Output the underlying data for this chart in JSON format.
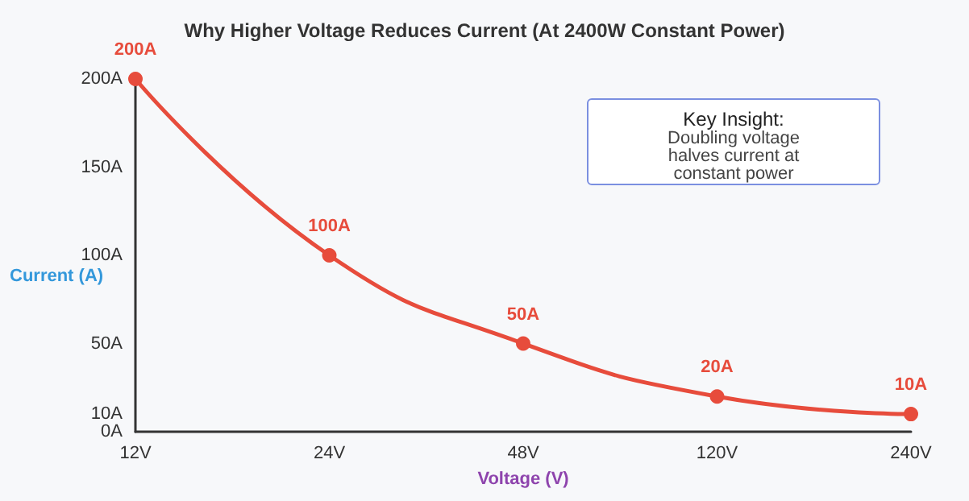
{
  "chart_data": {
    "type": "line",
    "title": "Why Higher Voltage Reduces Current (At 2400W Constant Power)",
    "xlabel": "Voltage (V)",
    "ylabel": "Current (A)",
    "categories": [
      "12V",
      "24V",
      "48V",
      "120V",
      "240V"
    ],
    "series": [
      {
        "color": "#e74c3c",
        "values": [
          200,
          100,
          50,
          20,
          10
        ],
        "value_labels": [
          "200A",
          "100A",
          "50A",
          "20A",
          "10A"
        ]
      }
    ],
    "ylim": [
      0,
      200
    ],
    "yticks": [
      {
        "value": 0,
        "label": "0A"
      },
      {
        "value": 10,
        "label": "10A"
      },
      {
        "value": 50,
        "label": "50A"
      },
      {
        "value": 100,
        "label": "100A"
      },
      {
        "value": 150,
        "label": "150A"
      },
      {
        "value": 200,
        "label": "200A"
      }
    ],
    "marker": "circle",
    "line_style": "solid",
    "grid": false,
    "annotations": [
      "Key Insight:",
      "Doubling voltage halves current at constant power"
    ]
  }
}
